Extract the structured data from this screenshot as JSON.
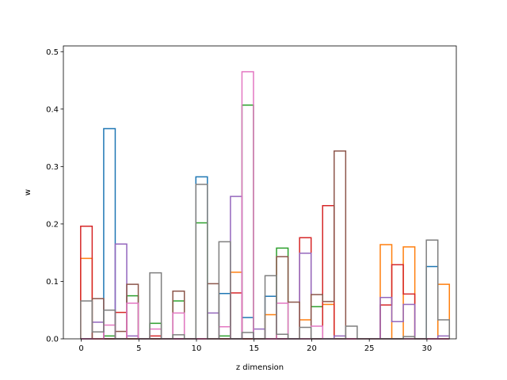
{
  "chart_data": {
    "type": "step",
    "xlabel": "z dimension",
    "ylabel": "w",
    "xlim": [
      -1.55,
      32.55
    ],
    "ylim": [
      0,
      0.51
    ],
    "xticks": [
      0,
      5,
      10,
      15,
      20,
      25,
      30
    ],
    "xtick_labels": [
      "0",
      "5",
      "10",
      "15",
      "20",
      "25",
      "30"
    ],
    "yticks": [
      0.0,
      0.1,
      0.2,
      0.3,
      0.4,
      0.5
    ],
    "ytick_labels": [
      "0.0",
      "0.1",
      "0.2",
      "0.3",
      "0.4",
      "0.5"
    ],
    "grid": false,
    "bin_edges_start": -0.05,
    "bin_width": 1,
    "series": [
      {
        "color": "#1f77b4",
        "values": [
          0.0,
          0.0,
          0.366,
          0.0,
          0.0,
          0.0,
          0.0,
          0.0,
          0.0,
          0.0,
          0.282,
          0.0,
          0.079,
          0.0,
          0.037,
          0.0,
          0.074,
          0.0,
          0.0,
          0.0,
          0.0,
          0.0,
          0.0,
          0.0,
          0.0,
          0.0,
          0.0,
          0.0,
          0.0,
          0.0,
          0.126,
          0.0
        ]
      },
      {
        "color": "#ff7f0e",
        "values": [
          0.14,
          0.0,
          0.0,
          0.0,
          0.0,
          0.0,
          0.0,
          0.0,
          0.0,
          0.0,
          0.0,
          0.0,
          0.0,
          0.116,
          0.0,
          0.0,
          0.042,
          0.0,
          0.0,
          0.033,
          0.0,
          0.06,
          0.0,
          0.0,
          0.0,
          0.0,
          0.164,
          0.0,
          0.16,
          0.0,
          0.0,
          0.095
        ]
      },
      {
        "color": "#2ca02c",
        "values": [
          0.0,
          0.0,
          0.005,
          0.0,
          0.075,
          0.0,
          0.027,
          0.0,
          0.066,
          0.0,
          0.202,
          0.0,
          0.005,
          0.0,
          0.407,
          0.0,
          0.0,
          0.158,
          0.0,
          0.0,
          0.056,
          0.0,
          0.0,
          0.0,
          0.0,
          0.0,
          0.0,
          0.0,
          0.0,
          0.0,
          0.0,
          0.0
        ]
      },
      {
        "color": "#d62728",
        "values": [
          0.196,
          0.0,
          0.0,
          0.046,
          0.0,
          0.0,
          0.005,
          0.0,
          0.0,
          0.0,
          0.0,
          0.0,
          0.0,
          0.08,
          0.0,
          0.0,
          0.0,
          0.0,
          0.0,
          0.176,
          0.0,
          0.232,
          0.0,
          0.0,
          0.0,
          0.0,
          0.059,
          0.129,
          0.078,
          0.0,
          0.0,
          0.0
        ]
      },
      {
        "color": "#9467bd",
        "values": [
          0.0,
          0.029,
          0.0,
          0.165,
          0.005,
          0.0,
          0.0,
          0.0,
          0.0,
          0.0,
          0.0,
          0.045,
          0.0,
          0.248,
          0.0,
          0.017,
          0.0,
          0.0,
          0.0,
          0.149,
          0.0,
          0.0,
          0.005,
          0.0,
          0.0,
          0.0,
          0.072,
          0.03,
          0.06,
          0.0,
          0.0,
          0.005
        ]
      },
      {
        "color": "#8c564b",
        "values": [
          0.0,
          0.07,
          0.0,
          0.013,
          0.095,
          0.0,
          0.0,
          0.0,
          0.083,
          0.0,
          0.0,
          0.096,
          0.0,
          0.0,
          0.0,
          0.0,
          0.0,
          0.143,
          0.064,
          0.0,
          0.077,
          0.065,
          0.327,
          0.0,
          0.0,
          0.0,
          0.0,
          0.0,
          0.0,
          0.0,
          0.0,
          0.0
        ]
      },
      {
        "color": "#e377c2",
        "values": [
          0.0,
          0.0,
          0.024,
          0.0,
          0.062,
          0.0,
          0.017,
          0.0,
          0.045,
          0.0,
          0.0,
          0.0,
          0.021,
          0.0,
          0.465,
          0.0,
          0.0,
          0.062,
          0.0,
          0.0,
          0.022,
          0.0,
          0.0,
          0.0,
          0.0,
          0.0,
          0.0,
          0.0,
          0.0,
          0.0,
          0.0,
          0.0
        ]
      },
      {
        "color": "#7f7f7f",
        "values": [
          0.066,
          0.012,
          0.05,
          0.0,
          0.0,
          0.0,
          0.115,
          0.0,
          0.007,
          0.0,
          0.269,
          0.0,
          0.169,
          0.0,
          0.011,
          0.0,
          0.11,
          0.008,
          0.0,
          0.02,
          0.0,
          0.0,
          0.0,
          0.022,
          0.0,
          0.0,
          0.0,
          0.0,
          0.004,
          0.0,
          0.172,
          0.033
        ]
      }
    ]
  }
}
